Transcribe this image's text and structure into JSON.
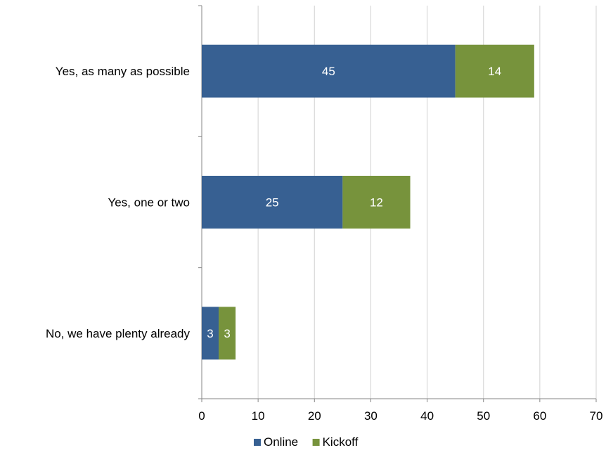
{
  "chart_data": {
    "type": "bar",
    "orientation": "horizontal",
    "stacked": true,
    "categories": [
      "Yes, as many as possible",
      "Yes, one or two",
      "No, we have plenty already"
    ],
    "series": [
      {
        "name": "Online",
        "values": [
          45,
          25,
          3
        ],
        "color": "#376092"
      },
      {
        "name": "Kickoff",
        "values": [
          14,
          12,
          3
        ],
        "color": "#77933C"
      }
    ],
    "xlim": [
      0,
      70
    ],
    "xticks": [
      0,
      10,
      20,
      30,
      40,
      50,
      60,
      70
    ],
    "grid": "vertical",
    "legend": "bottom",
    "data_labels": true
  }
}
